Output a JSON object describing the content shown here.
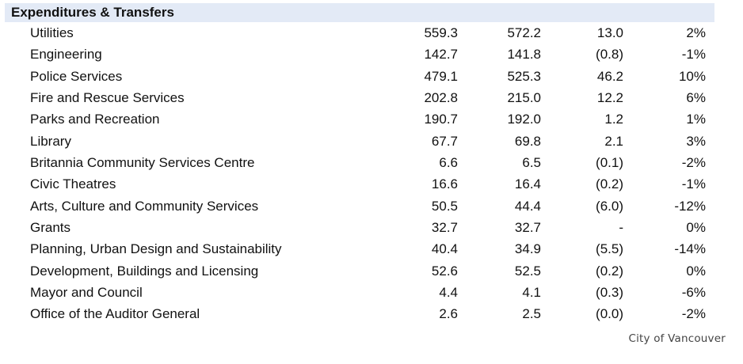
{
  "section": {
    "title": "Expenditures & Transfers"
  },
  "rows": [
    {
      "label": "Utilities",
      "v1": "559.3",
      "v2": "572.2",
      "v3": "13.0",
      "v4": "2%"
    },
    {
      "label": "Engineering",
      "v1": "142.7",
      "v2": "141.8",
      "v3": "(0.8)",
      "v4": "-1%"
    },
    {
      "label": "Police Services",
      "v1": "479.1",
      "v2": "525.3",
      "v3": "46.2",
      "v4": "10%"
    },
    {
      "label": "Fire and Rescue Services",
      "v1": "202.8",
      "v2": "215.0",
      "v3": "12.2",
      "v4": "6%"
    },
    {
      "label": "Parks and Recreation",
      "v1": "190.7",
      "v2": "192.0",
      "v3": "1.2",
      "v4": "1%"
    },
    {
      "label": "Library",
      "v1": "67.7",
      "v2": "69.8",
      "v3": "2.1",
      "v4": "3%"
    },
    {
      "label": "Britannia Community Services Centre",
      "v1": "6.6",
      "v2": "6.5",
      "v3": "(0.1)",
      "v4": "-2%"
    },
    {
      "label": "Civic Theatres",
      "v1": "16.6",
      "v2": "16.4",
      "v3": "(0.2)",
      "v4": "-1%"
    },
    {
      "label": "Arts, Culture and Community Services",
      "v1": "50.5",
      "v2": "44.4",
      "v3": "(6.0)",
      "v4": "-12%"
    },
    {
      "label": "Grants",
      "v1": "32.7",
      "v2": "32.7",
      "v3": "-",
      "v4": "0%"
    },
    {
      "label": "Planning, Urban Design and Sustainability",
      "v1": "40.4",
      "v2": "34.9",
      "v3": "(5.5)",
      "v4": "-14%"
    },
    {
      "label": "Development, Buildings and Licensing",
      "v1": "52.6",
      "v2": "52.5",
      "v3": "(0.2)",
      "v4": "0%"
    },
    {
      "label": "Mayor and Council",
      "v1": "4.4",
      "v2": "4.1",
      "v3": "(0.3)",
      "v4": "-6%"
    },
    {
      "label": "Office of the Auditor General",
      "v1": "2.6",
      "v2": "2.5",
      "v3": "(0.0)",
      "v4": "-2%"
    }
  ],
  "credit": "City of Vancouver"
}
